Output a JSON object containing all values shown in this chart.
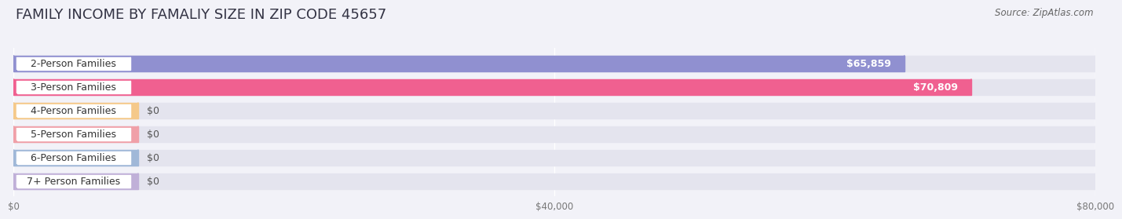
{
  "title": "FAMILY INCOME BY FAMALIY SIZE IN ZIP CODE 45657",
  "source": "Source: ZipAtlas.com",
  "categories": [
    "2-Person Families",
    "3-Person Families",
    "4-Person Families",
    "5-Person Families",
    "6-Person Families",
    "7+ Person Families"
  ],
  "values": [
    65859,
    70809,
    0,
    0,
    0,
    0
  ],
  "bar_colors": [
    "#9090d0",
    "#f06090",
    "#f5c98a",
    "#f0a0a8",
    "#a0b8d8",
    "#c0b0d8"
  ],
  "value_labels": [
    "$65,859",
    "$70,809",
    "$0",
    "$0",
    "$0",
    "$0"
  ],
  "xlim": [
    0,
    80000
  ],
  "xticks": [
    0,
    40000,
    80000
  ],
  "xtick_labels": [
    "$0",
    "$40,000",
    "$80,000"
  ],
  "background_color": "#f2f2f8",
  "bar_bg_color": "#e4e4ee",
  "title_fontsize": 13,
  "source_fontsize": 8.5,
  "label_fontsize": 9,
  "value_fontsize": 9,
  "bar_height": 0.68,
  "bar_gap": 1.0
}
